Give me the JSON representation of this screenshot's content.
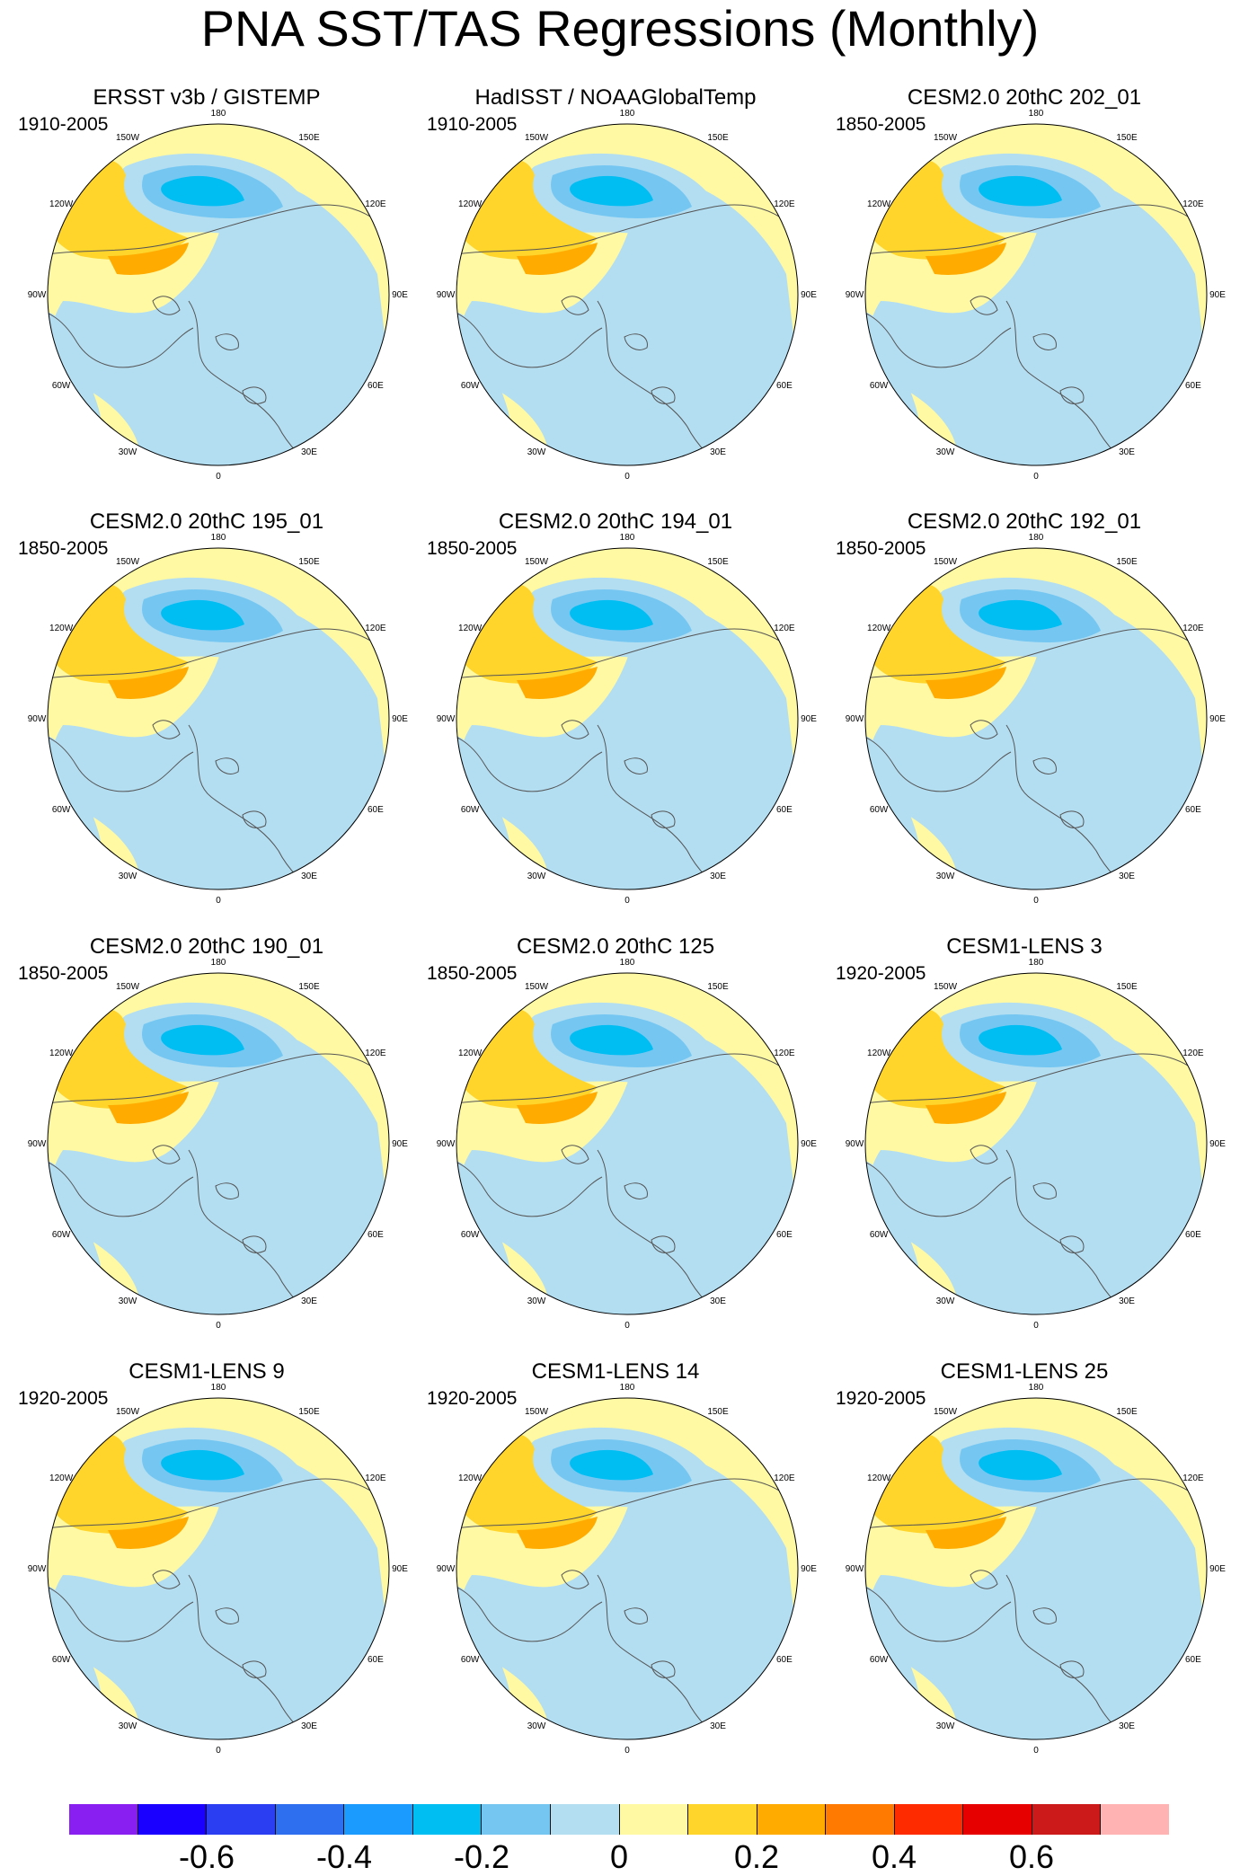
{
  "title": "PNA SST/TAS Regressions (Monthly)",
  "colors": {
    "ocean_neg_light": "#b3def2",
    "neg_mid": "#75c7f2",
    "neg_strong": "#00bdf2",
    "pos_light": "#fff9a3",
    "pos_mid": "#ffd42b",
    "pos_strong": "#ffab00",
    "land_line": "#555555",
    "missing": "#ffffff"
  },
  "lon_labels": [
    "180",
    "150E",
    "120E",
    "90E",
    "60E",
    "30E",
    "0",
    "30W",
    "60W",
    "90W",
    "120W",
    "150W"
  ],
  "panels": [
    {
      "title": "ERSST v3b / GISTEMP",
      "years": "1910-2005"
    },
    {
      "title": "HadISST / NOAAGlobalTemp",
      "years": "1910-2005"
    },
    {
      "title": "CESM2.0 20thC 202_01",
      "years": "1850-2005"
    },
    {
      "title": "CESM2.0 20thC 195_01",
      "years": "1850-2005"
    },
    {
      "title": "CESM2.0 20thC 194_01",
      "years": "1850-2005"
    },
    {
      "title": "CESM2.0 20thC 192_01",
      "years": "1850-2005"
    },
    {
      "title": "CESM2.0 20thC 190_01",
      "years": "1850-2005"
    },
    {
      "title": "CESM2.0 20thC 125",
      "years": "1850-2005"
    },
    {
      "title": "CESM1-LENS 3",
      "years": "1920-2005"
    },
    {
      "title": "CESM1-LENS 9",
      "years": "1920-2005"
    },
    {
      "title": "CESM1-LENS 14",
      "years": "1920-2005"
    },
    {
      "title": "CESM1-LENS 25",
      "years": "1920-2005"
    }
  ],
  "colorbar": {
    "colors": [
      "#8a1ff2",
      "#1a00ff",
      "#2b3ef2",
      "#2e6ff0",
      "#1c9bff",
      "#00bdf2",
      "#75c7f2",
      "#b3def2",
      "#fff9a3",
      "#ffd42b",
      "#ffab00",
      "#ff7a00",
      "#ff2b00",
      "#e60000",
      "#cc1a1a",
      "#ffb3b3"
    ],
    "tick_labels": [
      "-0.6",
      "-0.4",
      "-0.2",
      "0",
      "0.2",
      "0.4",
      "0.6"
    ]
  }
}
